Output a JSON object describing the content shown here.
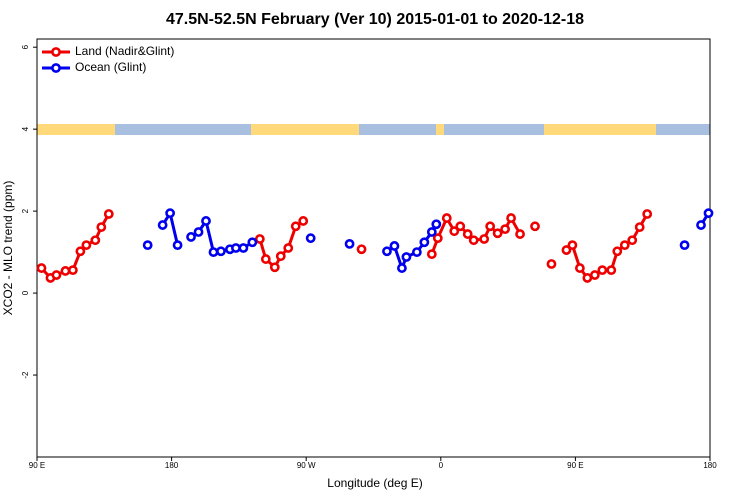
{
  "chart_data": {
    "type": "line",
    "title": "47.5N-52.5N February (Ver 10)   2015-01-01 to 2020-12-18",
    "xlabel": "Longitude (deg E)",
    "ylabel": "XCO2 - MLO trend (ppm)",
    "xlim": [
      90,
      540
    ],
    "xticks": [
      {
        "value": 90,
        "label": "90 E"
      },
      180,
      {
        "value": 270,
        "label": "90 W"
      },
      {
        "value": 360,
        "label": "0"
      },
      {
        "value": 450,
        "label": "90 E"
      },
      {
        "value": 540,
        "label": "180"
      }
    ],
    "ylim": [
      -4,
      6.2
    ],
    "yticks": [
      -2,
      0,
      2,
      4,
      6
    ],
    "grid": false,
    "legend": "top-left",
    "series": [
      {
        "name": "Land (Nadir&Glint)",
        "color": "#ee0000",
        "x": [
          93,
          99,
          103,
          109,
          114,
          119,
          123,
          129,
          133,
          138,
          null,
          239,
          243,
          249,
          253,
          258,
          263,
          268,
          null,
          307,
          null,
          354,
          358,
          364,
          369,
          373,
          378,
          382,
          389,
          393,
          398,
          403,
          407,
          413,
          null,
          423,
          null,
          434,
          null,
          444,
          448,
          453,
          458,
          463,
          468,
          474,
          478,
          483,
          488,
          493,
          498
        ],
        "values": [
          0.61,
          0.37,
          0.44,
          0.54,
          0.56,
          1.02,
          1.17,
          1.29,
          1.61,
          1.93,
          null,
          1.32,
          0.83,
          0.63,
          0.9,
          1.1,
          1.63,
          1.76,
          null,
          1.07,
          null,
          0.95,
          1.34,
          1.83,
          1.51,
          1.63,
          1.44,
          1.29,
          1.32,
          1.63,
          1.46,
          1.56,
          1.83,
          1.44,
          null,
          1.63,
          null,
          0.71,
          null,
          1.05,
          1.17,
          0.61,
          0.37,
          0.44,
          0.56,
          0.56,
          1.02,
          1.17,
          1.29,
          1.61,
          1.93
        ]
      },
      {
        "name": "Ocean (Glint)",
        "color": "#0000ee",
        "x": [
          164,
          null,
          174,
          179,
          184,
          null,
          193,
          198,
          203,
          208,
          213,
          219,
          223,
          228,
          234,
          null,
          273,
          null,
          299,
          null,
          324,
          329,
          334,
          337,
          344,
          349,
          354,
          357,
          null,
          523,
          null,
          534,
          539
        ],
        "values": [
          1.17,
          null,
          1.66,
          1.95,
          1.17,
          null,
          1.37,
          1.49,
          1.76,
          1.0,
          1.02,
          1.07,
          1.1,
          1.1,
          1.24,
          null,
          1.34,
          null,
          1.2,
          null,
          1.02,
          1.15,
          0.61,
          0.88,
          1.0,
          1.24,
          1.49,
          1.68,
          null,
          1.17,
          null,
          1.66,
          1.95
        ]
      }
    ]
  }
}
